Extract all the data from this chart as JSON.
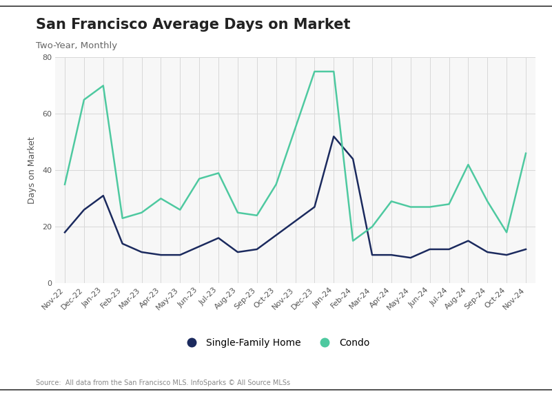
{
  "title": "San Francisco Average Days on Market",
  "subtitle": "Two-Year, Monthly",
  "ylabel": "Days on Market",
  "source": "Source:  All data from the San Francisco MLS. InfoSparks © All Source MLSs",
  "x_labels": [
    "Nov-22",
    "Dec-22",
    "Jan-23",
    "Feb-23",
    "Mar-23",
    "Apr-23",
    "May-23",
    "Jun-23",
    "Jul-23",
    "Aug-23",
    "Sep-23",
    "Oct-23",
    "Nov-23",
    "Dec-23",
    "Jan-24",
    "Feb-24",
    "Mar-24",
    "Apr-24",
    "May-24",
    "Jun-24",
    "Jul-24",
    "Aug-24",
    "Sep-24",
    "Oct-24",
    "Nov-24"
  ],
  "sfh_values": [
    18,
    26,
    31,
    14,
    11,
    10,
    10,
    13,
    16,
    11,
    12,
    17,
    22,
    27,
    52,
    44,
    10,
    10,
    9,
    12,
    12,
    15,
    11,
    10,
    12
  ],
  "condo_values": [
    35,
    65,
    70,
    23,
    25,
    30,
    26,
    37,
    39,
    25,
    24,
    35,
    55,
    75,
    75,
    15,
    20,
    29,
    27,
    27,
    28,
    42,
    29,
    18,
    46
  ],
  "sfh_color": "#1b2a5e",
  "condo_color": "#4ec9a0",
  "background_color": "#ffffff",
  "plot_bg_color": "#f7f7f7",
  "grid_color": "#d8d8d8",
  "ylim": [
    0,
    80
  ],
  "yticks": [
    0,
    20,
    40,
    60,
    80
  ],
  "title_fontsize": 15,
  "subtitle_fontsize": 9.5,
  "tick_fontsize": 8,
  "ylabel_fontsize": 9,
  "legend_fontsize": 10,
  "source_fontsize": 7,
  "legend_labels": [
    "Single-Family Home",
    "Condo"
  ],
  "line_width": 1.8,
  "border_color": "#333333"
}
